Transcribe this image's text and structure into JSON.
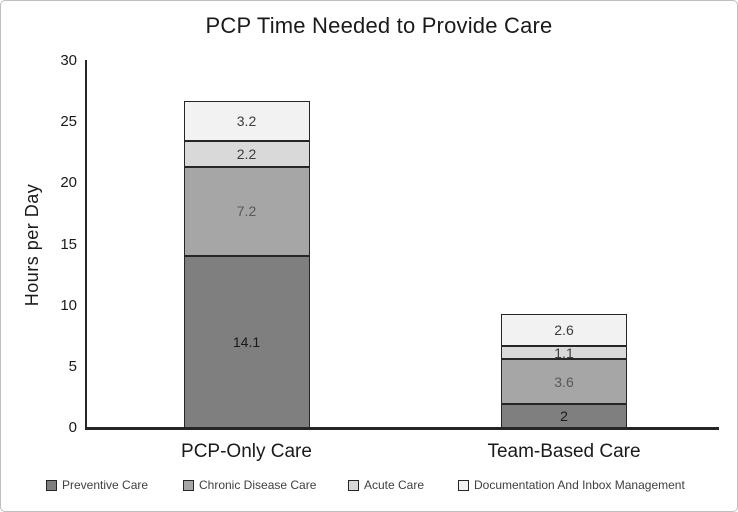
{
  "chart_data": {
    "type": "bar",
    "stacked": true,
    "title": "PCP Time Needed to Provide Care",
    "xlabel": "",
    "ylabel": "Hours per Day",
    "categories": [
      "PCP-Only Care",
      "Team-Based Care"
    ],
    "series": [
      {
        "name": "Preventive Care",
        "values": [
          14.1,
          2
        ],
        "labels": [
          "14.1",
          "2"
        ],
        "color": "#7f7f7f",
        "label_color": "#1a1a1a"
      },
      {
        "name": "Chronic Disease Care",
        "values": [
          7.2,
          3.6
        ],
        "labels": [
          "7.2",
          "3.6"
        ],
        "color": "#a6a6a6",
        "label_color": "#595959"
      },
      {
        "name": "Acute Care",
        "values": [
          2.2,
          1.1
        ],
        "labels": [
          "2.2",
          "1.1"
        ],
        "color": "#d9d9d9",
        "label_color": "#3d3d3d"
      },
      {
        "name": "Documentation And Inbox Management",
        "values": [
          3.2,
          2.6
        ],
        "labels": [
          "3.2",
          "2.6"
        ],
        "color": "#f2f2f2",
        "label_color": "#3d3d3d"
      }
    ],
    "ylim": [
      0,
      30
    ],
    "yticks": [
      30,
      25,
      20,
      15,
      10,
      5,
      0
    ],
    "grid": false,
    "legend_position": "bottom"
  },
  "colors": {
    "axis": "#262626",
    "text": "#1a1a1a",
    "legend_text": "#3f3f3f",
    "figure_border": "#bfbfbf",
    "background": "#ffffff"
  }
}
